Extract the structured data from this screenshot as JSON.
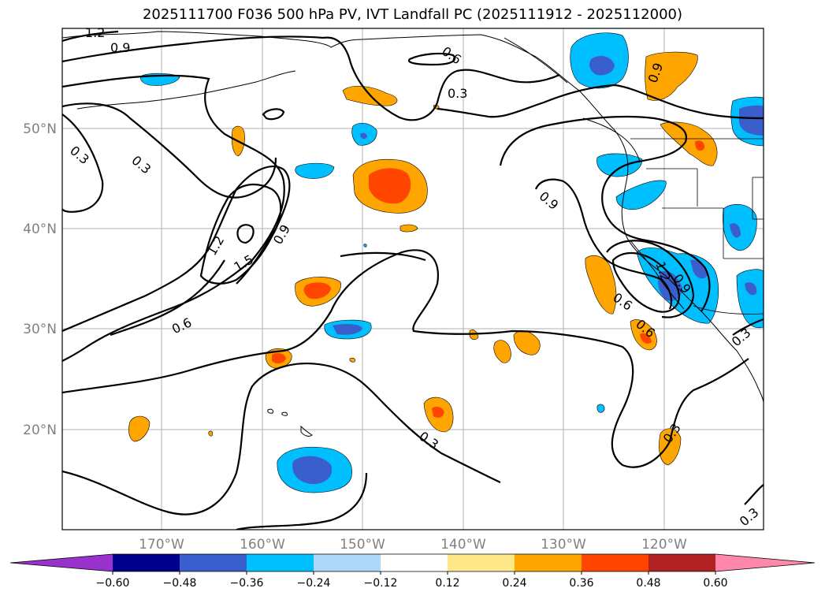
{
  "title": "2025111700 F036 500 hPa PV, IVT Landfall PC (2025111912 - 2025112000)",
  "map": {
    "lat_labels": [
      "50°N",
      "40°N",
      "30°N",
      "20°N"
    ],
    "lon_labels": [
      "170°W",
      "160°W",
      "150°W",
      "140°W",
      "130°W",
      "120°W"
    ],
    "contour_labels": [
      "1.2",
      "0.9",
      "0.6",
      "0.3",
      "0.3",
      "0.3",
      "0.9",
      "1.2",
      "1.5",
      "0.9",
      "0.6",
      "0.9",
      "0.6",
      "1.2",
      "0.9",
      "0.6",
      "0.3",
      "0.3",
      "0.3",
      "0.3"
    ]
  },
  "colorbar": {
    "ticks": [
      "−0.60",
      "−0.48",
      "−0.36",
      "−0.24",
      "−0.12",
      "0.12",
      "0.24",
      "0.36",
      "0.48",
      "0.60"
    ],
    "colors": [
      "#9932cc",
      "#00008b",
      "#3a5fcd",
      "#00bfff",
      "#add8f7",
      "#ffffff",
      "#ffe88a",
      "#ffa500",
      "#ff4500",
      "#b22222",
      "#ff88aa"
    ]
  },
  "colors": {
    "orange": "#ffa500",
    "red": "#ff4500",
    "cyan": "#00bfff",
    "blue": "#3a5fcd"
  }
}
